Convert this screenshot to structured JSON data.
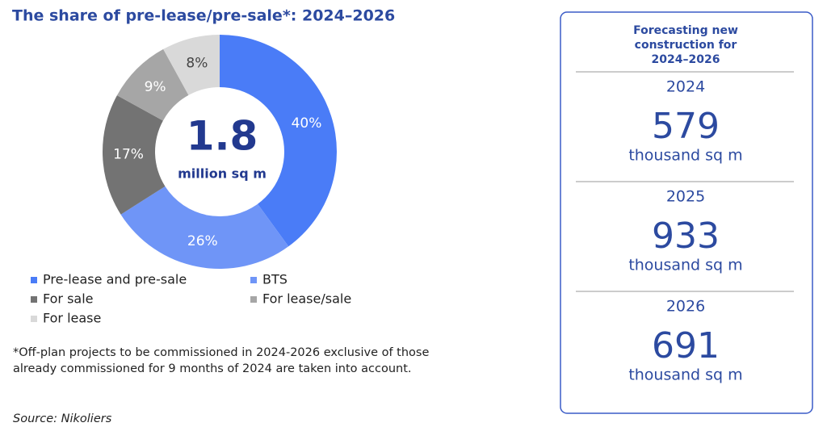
{
  "chart_data": {
    "type": "pie",
    "title": "The share of pre-lease/pre-sale*: 2024–2026",
    "categories": [
      "Pre-lease and pre-sale",
      "BTS",
      "For sale",
      "For lease/sale",
      "For lease"
    ],
    "values": [
      40,
      26,
      17,
      9,
      8
    ],
    "value_labels": [
      "40%",
      "26%",
      "17%",
      "9%",
      "8%"
    ],
    "colors": [
      "#4a7cf7",
      "#6f95f7",
      "#737373",
      "#a6a6a6",
      "#d9d9d9"
    ],
    "center_value": 1.8,
    "center_label": "million sq m",
    "footnote": "*Off-plan projects to be commissioned in 2024-2026 exclusive of those already commissioned for 9 months of 2024 are taken into account.",
    "source": "Source: Nikoliers"
  },
  "panel": {
    "title_lines": [
      "Forecasting new",
      "construction for",
      "2024–2026"
    ],
    "items": [
      {
        "year": "2024",
        "value": 579,
        "unit": "thousand sq m"
      },
      {
        "year": "2025",
        "value": 933,
        "unit": "thousand sq m"
      },
      {
        "year": "2026",
        "value": 691,
        "unit": "thousand sq m"
      }
    ]
  }
}
